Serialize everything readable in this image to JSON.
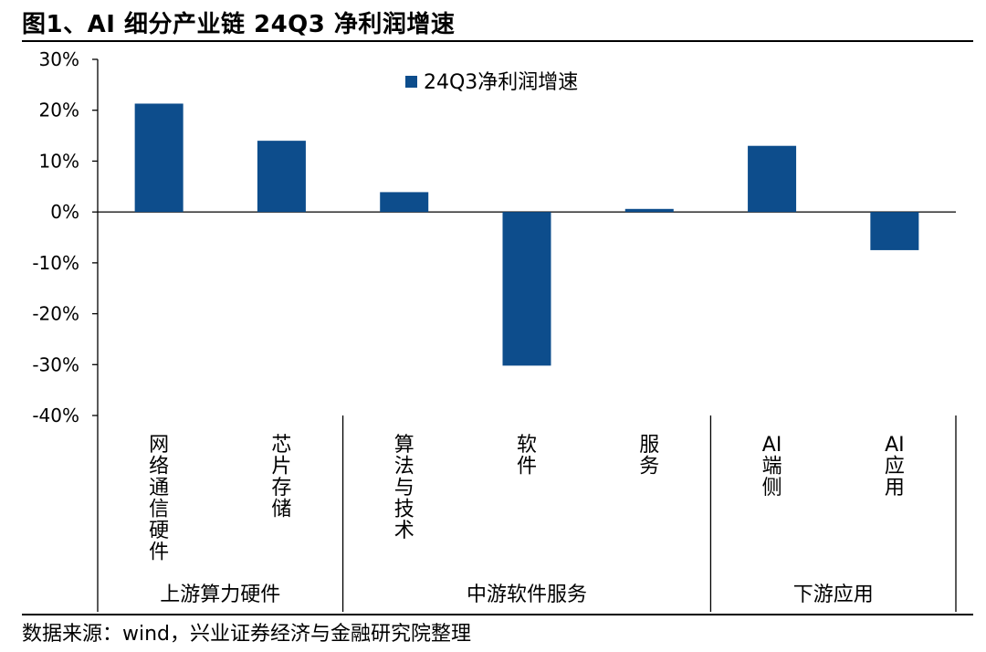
{
  "header": {
    "title": "图1、AI 细分产业链 24Q3 净利润增速"
  },
  "footer": {
    "source": "数据来源：wind，兴业证券经济与金融研究院整理"
  },
  "chart_data": {
    "type": "bar",
    "title": "图1、AI 细分产业链 24Q3 净利润增速",
    "categories": [
      "网络通信硬件",
      "芯片存储",
      "算法与技术",
      "软件",
      "服务",
      "AI端侧",
      "AI应用"
    ],
    "groups": [
      {
        "label": "上游算力硬件",
        "categories": [
          "网络通信硬件",
          "芯片存储"
        ]
      },
      {
        "label": "中游软件服务",
        "categories": [
          "算法与技术",
          "软件",
          "服务"
        ]
      },
      {
        "label": "下游应用",
        "categories": [
          "AI端侧",
          "AI应用"
        ]
      }
    ],
    "series": [
      {
        "name": "24Q3净利润增速",
        "values": [
          21.3,
          14.0,
          3.9,
          -30.2,
          0.6,
          13.0,
          -7.5
        ],
        "color": "#0d4d8c"
      }
    ],
    "yticks": [
      "30%",
      "20%",
      "10%",
      "0%",
      "-10%",
      "-20%",
      "-30%",
      "-40%"
    ],
    "ylim": [
      -40,
      30
    ],
    "unit": "%",
    "legend_position": "top-center",
    "grid": false
  }
}
